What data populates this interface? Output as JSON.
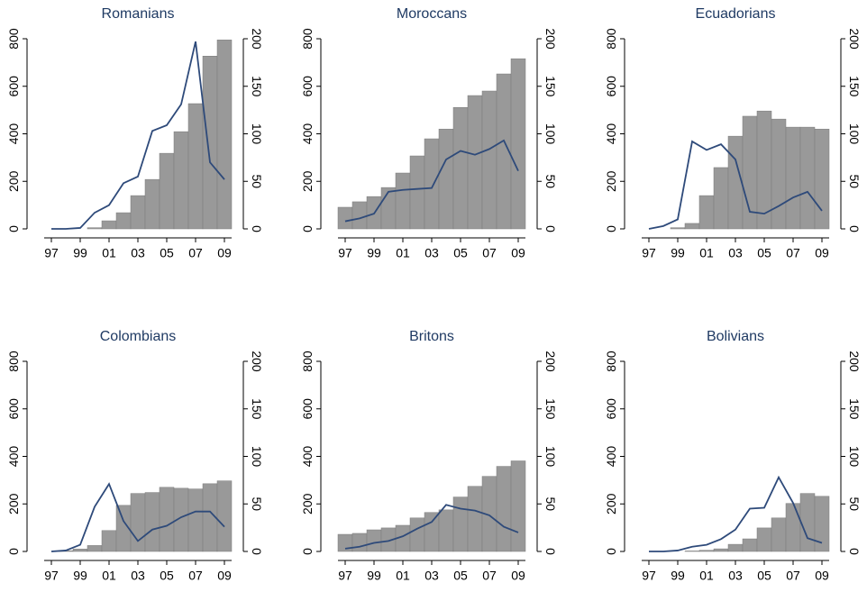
{
  "chart_data": [
    {
      "type": "combo",
      "title": "Romanians",
      "categories": [
        "97",
        null,
        "99",
        null,
        "01",
        null,
        "03",
        null,
        "05",
        null,
        "07",
        null,
        "09"
      ],
      "series": [
        {
          "type": "bar",
          "color": "#999999",
          "values": [
            0,
            0,
            0,
            5,
            34,
            68,
            140,
            208,
            318,
            409,
            527,
            727,
            795
          ]
        },
        {
          "type": "line",
          "axis": "y2",
          "color": "#2e4a7a",
          "values": [
            0,
            0,
            1,
            17,
            25,
            48,
            55,
            103,
            109,
            131,
            197,
            70,
            52
          ]
        }
      ],
      "ylim": [
        0,
        800
      ],
      "yticks": [
        0,
        200,
        400,
        600,
        800
      ],
      "y2lim": [
        0,
        200
      ],
      "y2ticks": [
        0,
        50,
        100,
        150,
        200
      ]
    },
    {
      "type": "combo",
      "title": "Moroccans",
      "categories": [
        "97",
        null,
        "99",
        null,
        "01",
        null,
        "03",
        null,
        "05",
        null,
        "07",
        null,
        "09"
      ],
      "series": [
        {
          "type": "bar",
          "color": "#999999",
          "values": [
            91,
            114,
            136,
            174,
            235,
            307,
            379,
            420,
            511,
            561,
            580,
            652,
            716
          ]
        },
        {
          "type": "line",
          "axis": "y2",
          "color": "#2e4a7a",
          "values": [
            8,
            11,
            16,
            39,
            41,
            42,
            43,
            73,
            82,
            78,
            84,
            93,
            61
          ]
        }
      ],
      "ylim": [
        0,
        800
      ],
      "yticks": [
        0,
        200,
        400,
        600,
        800
      ],
      "y2lim": [
        0,
        200
      ],
      "y2ticks": [
        0,
        50,
        100,
        150,
        200
      ]
    },
    {
      "type": "combo",
      "title": "Ecuadorians",
      "categories": [
        "97",
        null,
        "99",
        null,
        "01",
        null,
        "03",
        null,
        "05",
        null,
        "07",
        null,
        "09"
      ],
      "series": [
        {
          "type": "bar",
          "color": "#999999",
          "values": [
            0,
            0,
            5,
            23,
            140,
            258,
            390,
            474,
            496,
            462,
            428,
            428,
            420
          ]
        },
        {
          "type": "line",
          "axis": "y2",
          "color": "#2e4a7a",
          "values": [
            0,
            3,
            10,
            92,
            83,
            89,
            73,
            18,
            16,
            24,
            33,
            39,
            19
          ]
        }
      ],
      "ylim": [
        0,
        800
      ],
      "yticks": [
        0,
        200,
        400,
        600,
        800
      ],
      "y2lim": [
        0,
        200
      ],
      "y2ticks": [
        0,
        50,
        100,
        150,
        200
      ]
    },
    {
      "type": "combo",
      "title": "Colombians",
      "categories": [
        "97",
        null,
        "99",
        null,
        "01",
        null,
        "03",
        null,
        "05",
        null,
        "07",
        null,
        "09"
      ],
      "series": [
        {
          "type": "bar",
          "color": "#999999",
          "values": [
            0,
            3,
            10,
            25,
            88,
            194,
            244,
            248,
            270,
            266,
            263,
            285,
            297
          ]
        },
        {
          "type": "line",
          "axis": "y2",
          "color": "#2e4a7a",
          "values": [
            0,
            1,
            7,
            47,
            71,
            32,
            11,
            23,
            27,
            36,
            42,
            42,
            26
          ]
        }
      ],
      "ylim": [
        0,
        800
      ],
      "yticks": [
        0,
        200,
        400,
        600,
        800
      ],
      "y2lim": [
        0,
        200
      ],
      "y2ticks": [
        0,
        50,
        100,
        150,
        200
      ]
    },
    {
      "type": "combo",
      "title": "Britons",
      "categories": [
        "97",
        null,
        "99",
        null,
        "01",
        null,
        "03",
        null,
        "05",
        null,
        "07",
        null,
        "09"
      ],
      "series": [
        {
          "type": "bar",
          "color": "#999999",
          "values": [
            72,
            76,
            91,
            99,
            110,
            141,
            164,
            175,
            229,
            274,
            316,
            358,
            381
          ]
        },
        {
          "type": "line",
          "axis": "y2",
          "color": "#2e4a7a",
          "values": [
            3,
            5,
            9,
            11,
            16,
            24,
            31,
            49,
            45,
            43,
            38,
            26,
            20
          ]
        }
      ],
      "ylim": [
        0,
        800
      ],
      "yticks": [
        0,
        200,
        400,
        600,
        800
      ],
      "y2lim": [
        0,
        200
      ],
      "y2ticks": [
        0,
        50,
        100,
        150,
        200
      ]
    },
    {
      "type": "combo",
      "title": "Bolivians",
      "categories": [
        "97",
        null,
        "99",
        null,
        "01",
        null,
        "03",
        null,
        "05",
        null,
        "07",
        null,
        "09"
      ],
      "series": [
        {
          "type": "bar",
          "color": "#999999",
          "values": [
            0,
            0,
            0,
            2,
            5,
            11,
            30,
            53,
            99,
            141,
            202,
            244,
            232
          ]
        },
        {
          "type": "line",
          "axis": "y2",
          "color": "#2e4a7a",
          "values": [
            0,
            0,
            1,
            5,
            7,
            13,
            23,
            45,
            46,
            78,
            51,
            14,
            9
          ]
        }
      ],
      "ylim": [
        0,
        800
      ],
      "yticks": [
        0,
        200,
        400,
        600,
        800
      ],
      "y2lim": [
        0,
        200
      ],
      "y2ticks": [
        0,
        50,
        100,
        150,
        200
      ]
    }
  ]
}
